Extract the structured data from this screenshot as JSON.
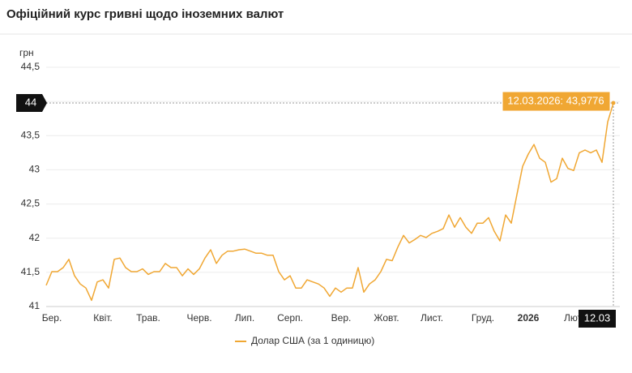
{
  "chart_data": {
    "type": "line",
    "title": "Офіційний курс гривні щодо іноземних валют",
    "y_axis_label": "грн",
    "categories": [
      null,
      "Бер.",
      null,
      null,
      null,
      null,
      null,
      null,
      null,
      null,
      "Квіт.",
      null,
      null,
      null,
      null,
      null,
      null,
      null,
      "Трав.",
      null,
      null,
      null,
      null,
      null,
      null,
      null,
      null,
      "Черв.",
      null,
      null,
      null,
      null,
      null,
      null,
      null,
      "Лип.",
      null,
      null,
      null,
      null,
      null,
      null,
      null,
      "Серп.",
      null,
      null,
      null,
      null,
      null,
      null,
      null,
      null,
      "Вер.",
      null,
      null,
      null,
      null,
      null,
      null,
      null,
      "Жовт.",
      null,
      null,
      null,
      null,
      null,
      null,
      null,
      "Лист.",
      null,
      null,
      null,
      null,
      null,
      null,
      null,
      null,
      "Груд.",
      null,
      null,
      null,
      null,
      null,
      null,
      null,
      "2026",
      null,
      null,
      null,
      null,
      null,
      null,
      null,
      "Лют.",
      null,
      null,
      null,
      null,
      null,
      null,
      "12.03"
    ],
    "series": [
      {
        "name": "Долар США (за 1 одиницю)",
        "color": "#f0a733",
        "values": [
          41.31,
          41.51,
          41.51,
          41.57,
          41.69,
          41.45,
          41.33,
          41.27,
          41.09,
          41.36,
          41.39,
          41.27,
          41.69,
          41.71,
          41.57,
          41.51,
          41.51,
          41.55,
          41.47,
          41.51,
          41.51,
          41.63,
          41.57,
          41.57,
          41.45,
          41.55,
          41.47,
          41.55,
          41.71,
          41.83,
          41.63,
          41.75,
          41.81,
          41.81,
          41.83,
          41.84,
          41.81,
          41.78,
          41.78,
          41.75,
          41.75,
          41.51,
          41.39,
          41.45,
          41.27,
          41.27,
          41.39,
          41.36,
          41.33,
          41.27,
          41.15,
          41.27,
          41.21,
          41.27,
          41.27,
          41.57,
          41.21,
          41.33,
          41.39,
          41.51,
          41.69,
          41.67,
          41.87,
          42.04,
          41.93,
          41.98,
          42.04,
          42.01,
          42.07,
          42.1,
          42.14,
          42.34,
          42.16,
          42.3,
          42.16,
          42.07,
          42.22,
          42.22,
          42.3,
          42.1,
          41.96,
          42.34,
          42.22,
          42.64,
          43.05,
          43.23,
          43.37,
          43.17,
          43.11,
          42.82,
          42.87,
          43.17,
          43.02,
          42.99,
          43.25,
          43.29,
          43.25,
          43.29,
          43.11,
          43.7,
          43.9776
        ]
      }
    ],
    "ylim": [
      41,
      44.5
    ],
    "yticks": [
      41,
      {
        "value": 41.5,
        "label": "41,5"
      },
      42,
      {
        "value": 42.5,
        "label": "42,5"
      },
      43,
      {
        "value": 43.5,
        "label": "43,5"
      },
      44,
      {
        "value": 44.5,
        "label": "44,5"
      }
    ],
    "grid": true,
    "tooltip": "12.03.2026: 43,9776",
    "crosshair_label": "44"
  }
}
